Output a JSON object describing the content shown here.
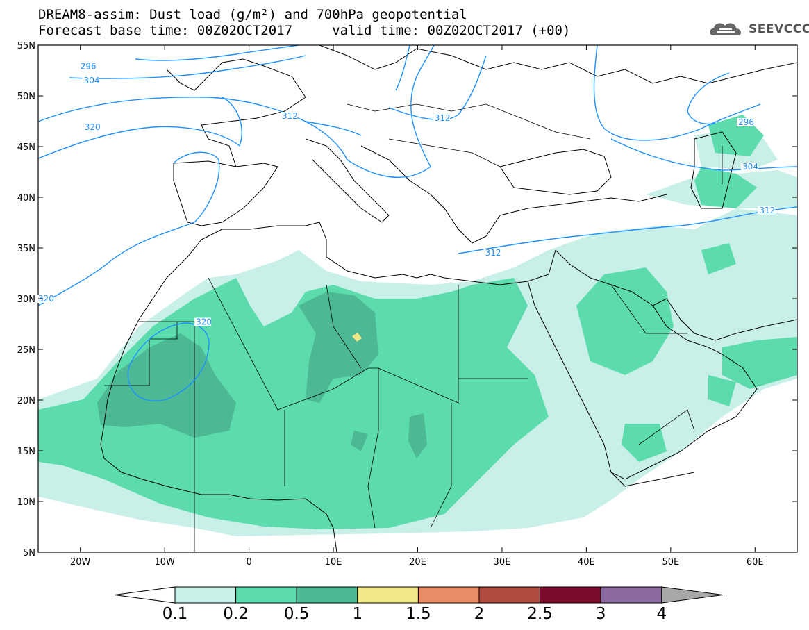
{
  "title": {
    "line1": "DREAM8-assim: Dust load (g/m²) and 700hPa geopotential",
    "line2": "Forecast base time: 00Z02OCT2017     valid time: 00Z02OCT2017 (+00)"
  },
  "logo": {
    "text": "SEEVCCC",
    "icon": "cloud-icon"
  },
  "map": {
    "lon_range": [
      -25,
      65
    ],
    "lat_range": [
      5,
      55
    ],
    "lat_ticks": [
      {
        "value": 55,
        "label": "55N"
      },
      {
        "value": 50,
        "label": "50N"
      },
      {
        "value": 45,
        "label": "45N"
      },
      {
        "value": 40,
        "label": "40N"
      },
      {
        "value": 35,
        "label": "35N"
      },
      {
        "value": 30,
        "label": "30N"
      },
      {
        "value": 25,
        "label": "25N"
      },
      {
        "value": 20,
        "label": "20N"
      },
      {
        "value": 15,
        "label": "15N"
      },
      {
        "value": 10,
        "label": "10N"
      },
      {
        "value": 5,
        "label": "5N"
      }
    ],
    "lon_ticks": [
      {
        "value": -20,
        "label": "20W"
      },
      {
        "value": -10,
        "label": "10W"
      },
      {
        "value": 0,
        "label": "0"
      },
      {
        "value": 10,
        "label": "10E"
      },
      {
        "value": 20,
        "label": "20E"
      },
      {
        "value": 30,
        "label": "30E"
      },
      {
        "value": 40,
        "label": "40E"
      },
      {
        "value": 50,
        "label": "50E"
      },
      {
        "value": 60,
        "label": "60E"
      }
    ],
    "contour_labels": [
      {
        "text": "296",
        "lon": -20,
        "lat": 52.7
      },
      {
        "text": "304",
        "lon": -19.6,
        "lat": 51.3
      },
      {
        "text": "312",
        "lon": 3.9,
        "lat": 47.8
      },
      {
        "text": "312",
        "lon": 22,
        "lat": 47.6
      },
      {
        "text": "320",
        "lon": -19.5,
        "lat": 46.7
      },
      {
        "text": "296",
        "lon": 58,
        "lat": 47.2
      },
      {
        "text": "304",
        "lon": 58.5,
        "lat": 42.8
      },
      {
        "text": "312",
        "lon": 60.5,
        "lat": 38.5
      },
      {
        "text": "312",
        "lon": 28,
        "lat": 34.3
      },
      {
        "text": "320",
        "lon": -25,
        "lat": 29.8
      },
      {
        "text": "320",
        "lon": -6.3,
        "lat": 27.5
      }
    ]
  },
  "colorbar": {
    "colors": [
      "#c8f0e8",
      "#5cdcac",
      "#4cb894",
      "#f0e888",
      "#e88c68",
      "#b04c40",
      "#7c0c2c",
      "#8c6ca0"
    ],
    "under_color": "#ffffff",
    "over_color": "#a8a8a8",
    "labels": [
      "0.1",
      "0.2",
      "0.5",
      "1",
      "1.5",
      "2",
      "2.5",
      "3",
      "4"
    ]
  },
  "contour_color": "#1e90ff"
}
